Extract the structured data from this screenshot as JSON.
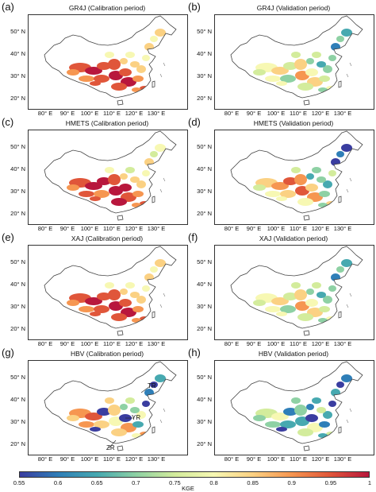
{
  "panels": [
    {
      "label": "(a)",
      "title": "GR4J (Calibration period)",
      "scheme": "calA"
    },
    {
      "label": "(b)",
      "title": "GR4J (Validation period)",
      "scheme": "valA"
    },
    {
      "label": "(c)",
      "title": "HMETS (Calibration period)",
      "scheme": "calB"
    },
    {
      "label": "(d)",
      "title": "HMETS (Validation period)",
      "scheme": "valB"
    },
    {
      "label": "(e)",
      "title": "XAJ (Calibration period)",
      "scheme": "calA"
    },
    {
      "label": "(f)",
      "title": "XAJ (Validation period)",
      "scheme": "valA"
    },
    {
      "label": "(g)",
      "title": "HBV (Calibration period)",
      "scheme": "hbvCal"
    },
    {
      "label": "(h)",
      "title": "HBV (Validation period)",
      "scheme": "hbvVal"
    }
  ],
  "axes": {
    "lat_ticks": [
      "20° N",
      "30° N",
      "40° N",
      "50° N"
    ],
    "lon_ticks": [
      "80° E",
      "90° E",
      "100° E",
      "110° E",
      "120° E",
      "130° E"
    ]
  },
  "annotations": {
    "yr": "YR",
    "zr": "ZR",
    "tr": "TR"
  },
  "colorbar": {
    "label": "KGE",
    "ticks": [
      "0.55",
      "0.6",
      "0.65",
      "0.7",
      "0.75",
      "0.8",
      "0.85",
      "0.9",
      "0.95",
      "1"
    ],
    "colors": [
      "#3a3da0",
      "#2f7fb8",
      "#47a9b0",
      "#8ed1a4",
      "#d3ec9c",
      "#f7f8b3",
      "#fbd183",
      "#f69651",
      "#e0563a",
      "#b8173d"
    ]
  }
}
